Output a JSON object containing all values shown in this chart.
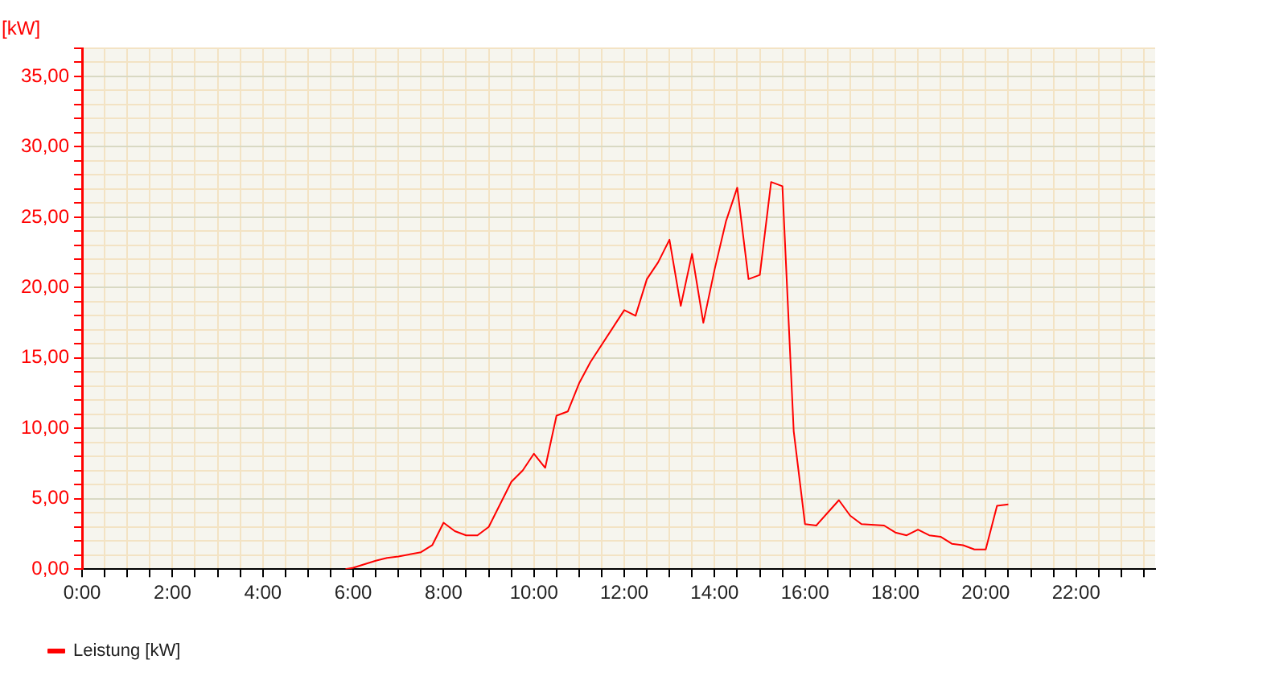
{
  "chart_data": {
    "type": "line",
    "ylabel": "[kW]",
    "xlim": [
      0,
      23.75
    ],
    "xticks": [
      {
        "value": 0,
        "label": "0:00"
      },
      {
        "value": 0.5,
        "label": null
      },
      {
        "value": 1,
        "label": null
      },
      {
        "value": 1.5,
        "label": null
      },
      {
        "value": 2,
        "label": "2:00"
      },
      {
        "value": 2.5,
        "label": null
      },
      {
        "value": 3,
        "label": null
      },
      {
        "value": 3.5,
        "label": null
      },
      {
        "value": 4,
        "label": "4:00"
      },
      {
        "value": 4.5,
        "label": null
      },
      {
        "value": 5,
        "label": null
      },
      {
        "value": 5.5,
        "label": null
      },
      {
        "value": 6,
        "label": "6:00"
      },
      {
        "value": 6.5,
        "label": null
      },
      {
        "value": 7,
        "label": null
      },
      {
        "value": 7.5,
        "label": null
      },
      {
        "value": 8,
        "label": "8:00"
      },
      {
        "value": 8.5,
        "label": null
      },
      {
        "value": 9,
        "label": null
      },
      {
        "value": 9.5,
        "label": null
      },
      {
        "value": 10,
        "label": "10:00"
      },
      {
        "value": 10.5,
        "label": null
      },
      {
        "value": 11,
        "label": null
      },
      {
        "value": 11.5,
        "label": null
      },
      {
        "value": 12,
        "label": "12:00"
      },
      {
        "value": 12.5,
        "label": null
      },
      {
        "value": 13,
        "label": null
      },
      {
        "value": 13.5,
        "label": null
      },
      {
        "value": 14,
        "label": "14:00"
      },
      {
        "value": 14.5,
        "label": null
      },
      {
        "value": 15,
        "label": null
      },
      {
        "value": 15.5,
        "label": null
      },
      {
        "value": 16,
        "label": "16:00"
      },
      {
        "value": 16.5,
        "label": null
      },
      {
        "value": 17,
        "label": null
      },
      {
        "value": 17.5,
        "label": null
      },
      {
        "value": 18,
        "label": "18:00"
      },
      {
        "value": 18.5,
        "label": null
      },
      {
        "value": 19,
        "label": null
      },
      {
        "value": 19.5,
        "label": null
      },
      {
        "value": 20,
        "label": "20:00"
      },
      {
        "value": 20.5,
        "label": null
      },
      {
        "value": 21,
        "label": null
      },
      {
        "value": 21.5,
        "label": null
      },
      {
        "value": 22,
        "label": "22:00"
      },
      {
        "value": 22.5,
        "label": null
      },
      {
        "value": 23,
        "label": null
      },
      {
        "value": 23.5,
        "label": null
      }
    ],
    "ylim": [
      0,
      37
    ],
    "yticks": [
      {
        "value": 0,
        "label": "0,00"
      },
      {
        "value": 1,
        "label": null
      },
      {
        "value": 2,
        "label": null
      },
      {
        "value": 3,
        "label": null
      },
      {
        "value": 4,
        "label": null
      },
      {
        "value": 5,
        "label": "5,00"
      },
      {
        "value": 6,
        "label": null
      },
      {
        "value": 7,
        "label": null
      },
      {
        "value": 8,
        "label": null
      },
      {
        "value": 9,
        "label": null
      },
      {
        "value": 10,
        "label": "10,00"
      },
      {
        "value": 11,
        "label": null
      },
      {
        "value": 12,
        "label": null
      },
      {
        "value": 13,
        "label": null
      },
      {
        "value": 14,
        "label": null
      },
      {
        "value": 15,
        "label": "15,00"
      },
      {
        "value": 16,
        "label": null
      },
      {
        "value": 17,
        "label": null
      },
      {
        "value": 18,
        "label": null
      },
      {
        "value": 19,
        "label": null
      },
      {
        "value": 20,
        "label": "20,00"
      },
      {
        "value": 21,
        "label": null
      },
      {
        "value": 22,
        "label": null
      },
      {
        "value": 23,
        "label": null
      },
      {
        "value": 24,
        "label": null
      },
      {
        "value": 25,
        "label": "25,00"
      },
      {
        "value": 26,
        "label": null
      },
      {
        "value": 27,
        "label": null
      },
      {
        "value": 28,
        "label": null
      },
      {
        "value": 29,
        "label": null
      },
      {
        "value": 30,
        "label": "30,00"
      },
      {
        "value": 31,
        "label": null
      },
      {
        "value": 32,
        "label": null
      },
      {
        "value": 33,
        "label": null
      },
      {
        "value": 34,
        "label": null
      },
      {
        "value": 35,
        "label": "35,00"
      },
      {
        "value": 36,
        "label": null
      },
      {
        "value": 37,
        "label": null
      }
    ],
    "grid": true,
    "legend": "bottom left",
    "marker": "none",
    "line_style": "solid",
    "series": [
      {
        "name": "Leistung [kW]",
        "color": "#ff0000",
        "x": [
          5.83,
          6,
          6.5,
          6.75,
          7,
          7.5,
          7.75,
          8,
          8.25,
          8.5,
          8.75,
          9,
          9.5,
          9.75,
          10,
          10.25,
          10.5,
          10.75,
          11,
          11.25,
          12,
          12.25,
          12.5,
          12.75,
          13,
          13.25,
          13.5,
          13.75,
          14,
          14.25,
          14.5,
          14.75,
          15,
          15.25,
          15.5,
          15.75,
          16,
          16.25,
          16.75,
          17,
          17.25,
          17.75,
          18,
          18.25,
          18.5,
          18.75,
          19,
          19.25,
          19.5,
          19.75,
          20,
          20.25,
          20.5
        ],
        "values": [
          0,
          0.1,
          0.6,
          0.8,
          0.9,
          1.2,
          1.7,
          3.3,
          2.7,
          2.4,
          2.4,
          3,
          6.2,
          7,
          8.2,
          7.2,
          10.9,
          11.2,
          13.2,
          14.7,
          18.4,
          18,
          20.6,
          21.8,
          23.4,
          18.7,
          22.4,
          17.5,
          21.3,
          24.7,
          27.1,
          20.6,
          20.9,
          27.5,
          27.2,
          9.8,
          3.2,
          3.1,
          4.9,
          3.8,
          3.2,
          3.1,
          2.6,
          2.4,
          2.8,
          2.4,
          2.3,
          1.8,
          1.7,
          1.4,
          1.4,
          4.5,
          4.6
        ]
      }
    ]
  }
}
